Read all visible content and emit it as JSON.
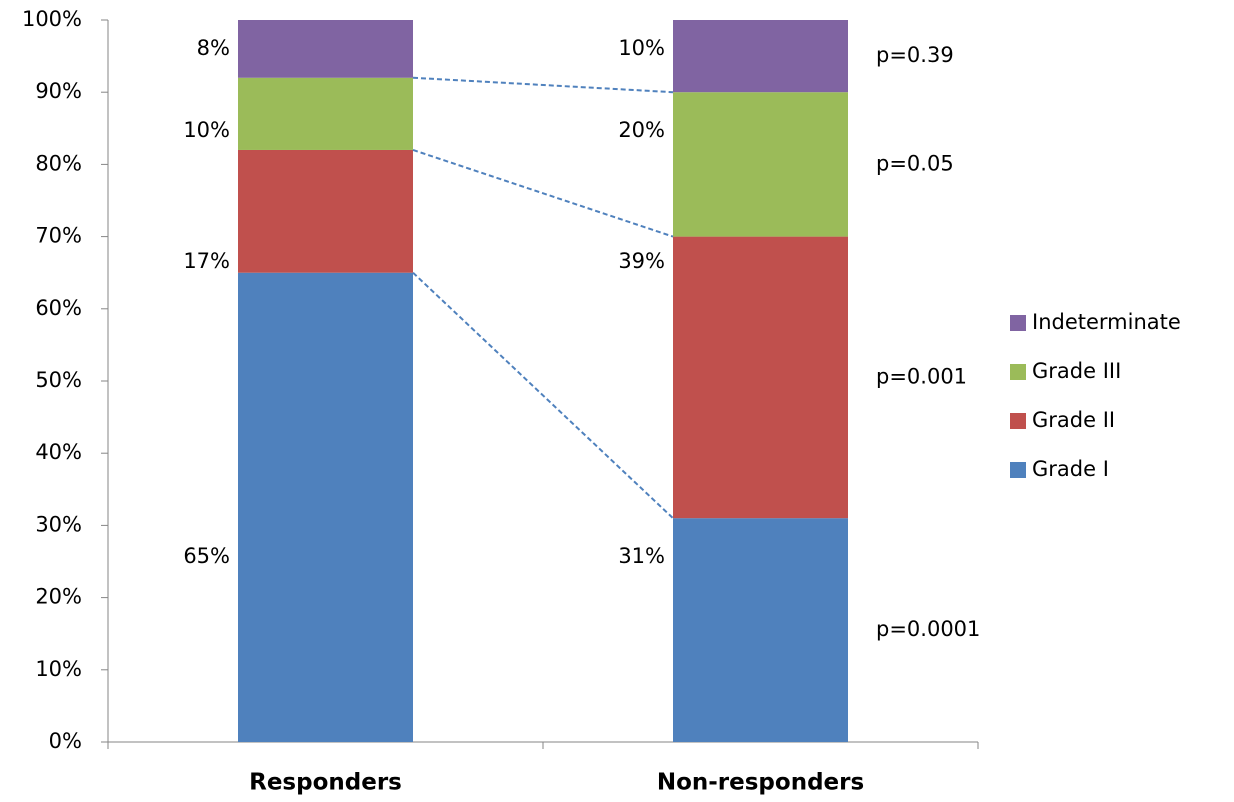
{
  "chart_data": {
    "type": "stacked_bar",
    "categories": [
      "Responders",
      "Non-responders"
    ],
    "series": [
      {
        "name": "Grade I",
        "color": "#4f81bd",
        "values": [
          65,
          31
        ],
        "value_labels": [
          "65%",
          "31%"
        ],
        "p_value": "p=0.0001"
      },
      {
        "name": "Grade II",
        "color": "#c0504d",
        "values": [
          17,
          39
        ],
        "value_labels": [
          "17%",
          "39%"
        ],
        "p_value": "p=0.001"
      },
      {
        "name": "Grade III",
        "color": "#9bbb59",
        "values": [
          10,
          20
        ],
        "value_labels": [
          "10%",
          "20%"
        ],
        "p_value": "p=0.05"
      },
      {
        "name": "Indeterminate",
        "color": "#8064a2",
        "values": [
          8,
          10
        ],
        "value_labels": [
          "8%",
          "10%"
        ],
        "p_value": "p=0.39"
      }
    ],
    "ylim": [
      0,
      100
    ],
    "yticks": [
      {
        "value": 0,
        "label": "0%"
      },
      {
        "value": 10,
        "label": "10%"
      },
      {
        "value": 20,
        "label": "20%"
      },
      {
        "value": 30,
        "label": "30%"
      },
      {
        "value": 40,
        "label": "40%"
      },
      {
        "value": 50,
        "label": "50%"
      },
      {
        "value": 60,
        "label": "60%"
      },
      {
        "value": 70,
        "label": "70%"
      },
      {
        "value": 80,
        "label": "80%"
      },
      {
        "value": 90,
        "label": "90%"
      },
      {
        "value": 100,
        "label": "100%"
      }
    ],
    "grid": false,
    "legend": "right"
  }
}
